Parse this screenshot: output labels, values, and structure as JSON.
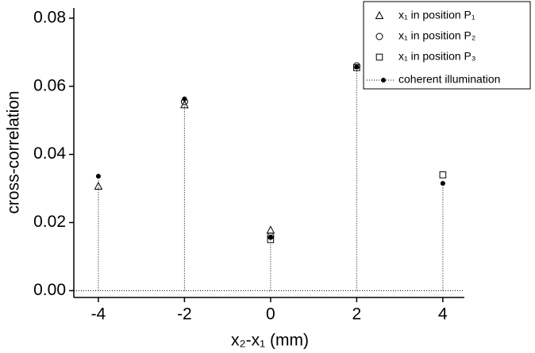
{
  "chart_data": {
    "type": "scatter",
    "xlabel": "x₂-x₁ (mm)",
    "ylabel": "cross-correlation",
    "x": [
      -4,
      -2,
      0,
      2,
      4
    ],
    "series": [
      {
        "name": "x₁ in position P₁",
        "marker": "triangle",
        "color": "#000000",
        "values": [
          0.0306,
          0.0545,
          0.0177,
          null,
          null
        ]
      },
      {
        "name": "x₁ in position P₂",
        "marker": "circle",
        "color": "#000000",
        "values": [
          null,
          0.0555,
          0.016,
          0.066,
          null
        ]
      },
      {
        "name": "x₁ in position P₃",
        "marker": "square",
        "color": "#000000",
        "values": [
          null,
          null,
          0.015,
          0.0655,
          0.034
        ]
      },
      {
        "name": "coherent illumination",
        "marker": "dot-stem",
        "color": "#000000",
        "values": [
          0.0336,
          0.0563,
          0.0158,
          0.0657,
          0.0315
        ]
      }
    ],
    "xlim": [
      -4.57,
      4.5
    ],
    "ylim": [
      -0.002,
      0.083
    ],
    "xticks": [
      -4,
      -2,
      0,
      2,
      4
    ],
    "yticks": [
      {
        "value": 0,
        "label": "0.00"
      },
      0.02,
      0.04,
      0.06,
      0.08
    ],
    "legend": "upper-right"
  }
}
